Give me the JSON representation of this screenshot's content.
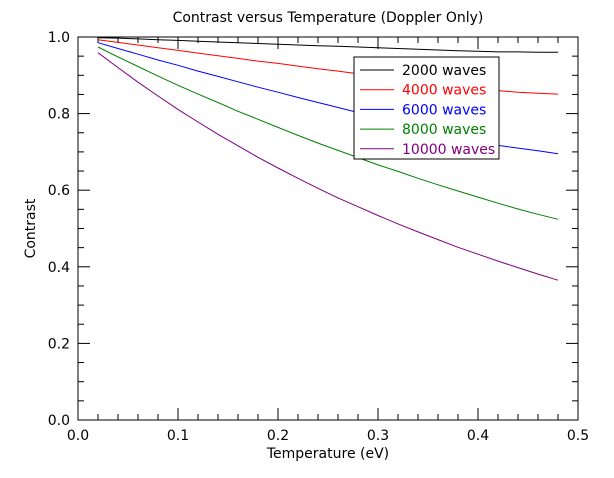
{
  "chart_data": {
    "type": "line",
    "title": "Contrast versus Temperature (Doppler Only)",
    "xlabel": "Temperature (eV)",
    "ylabel": "Contrast",
    "xlim": [
      0.0,
      0.5
    ],
    "ylim": [
      0.0,
      1.0
    ],
    "x_ticks": [
      0.0,
      0.1,
      0.2,
      0.3,
      0.4,
      0.5
    ],
    "x_tick_labels": [
      "0.0",
      "0.1",
      "0.2",
      "0.3",
      "0.4",
      "0.5"
    ],
    "y_ticks": [
      0.0,
      0.2,
      0.4,
      0.6,
      0.8,
      1.0
    ],
    "y_tick_labels": [
      "0.0",
      "0.2",
      "0.4",
      "0.6",
      "0.8",
      "1.0"
    ],
    "grid": false,
    "legend_position": "top-right",
    "x": [
      0.02,
      0.04,
      0.06,
      0.08,
      0.1,
      0.12,
      0.14,
      0.16,
      0.18,
      0.2,
      0.22,
      0.24,
      0.26,
      0.28,
      0.3,
      0.32,
      0.34,
      0.36,
      0.38,
      0.4,
      0.42,
      0.44,
      0.46,
      0.48
    ],
    "series": [
      {
        "name": "2000 waves",
        "color": "#000000",
        "values": [
          0.998,
          0.997,
          0.995,
          0.993,
          0.991,
          0.989,
          0.987,
          0.985,
          0.983,
          0.981,
          0.979,
          0.977,
          0.976,
          0.974,
          0.972,
          0.97,
          0.968,
          0.966,
          0.964,
          0.963,
          0.961,
          0.961,
          0.96,
          0.96
        ]
      },
      {
        "name": "4000 waves",
        "color": "#ff0000",
        "values": [
          0.993,
          0.986,
          0.979,
          0.972,
          0.965,
          0.958,
          0.951,
          0.944,
          0.937,
          0.931,
          0.924,
          0.917,
          0.911,
          0.904,
          0.898,
          0.891,
          0.885,
          0.878,
          0.872,
          0.866,
          0.86,
          0.856,
          0.853,
          0.851
        ]
      },
      {
        "name": "6000 waves",
        "color": "#0000ff",
        "values": [
          0.985,
          0.97,
          0.955,
          0.94,
          0.926,
          0.911,
          0.897,
          0.883,
          0.869,
          0.856,
          0.842,
          0.829,
          0.816,
          0.803,
          0.79,
          0.778,
          0.765,
          0.753,
          0.741,
          0.729,
          0.717,
          0.71,
          0.703,
          0.695
        ]
      },
      {
        "name": "8000 waves",
        "color": "#008000",
        "values": [
          0.974,
          0.948,
          0.923,
          0.898,
          0.874,
          0.851,
          0.829,
          0.806,
          0.785,
          0.764,
          0.743,
          0.723,
          0.704,
          0.685,
          0.666,
          0.649,
          0.631,
          0.614,
          0.598,
          0.582,
          0.566,
          0.551,
          0.537,
          0.524
        ]
      },
      {
        "name": "10000 waves",
        "color": "#800080",
        "values": [
          0.959,
          0.92,
          0.882,
          0.846,
          0.811,
          0.778,
          0.746,
          0.716,
          0.686,
          0.658,
          0.631,
          0.605,
          0.58,
          0.557,
          0.534,
          0.512,
          0.491,
          0.471,
          0.451,
          0.433,
          0.415,
          0.398,
          0.381,
          0.365
        ]
      }
    ]
  }
}
